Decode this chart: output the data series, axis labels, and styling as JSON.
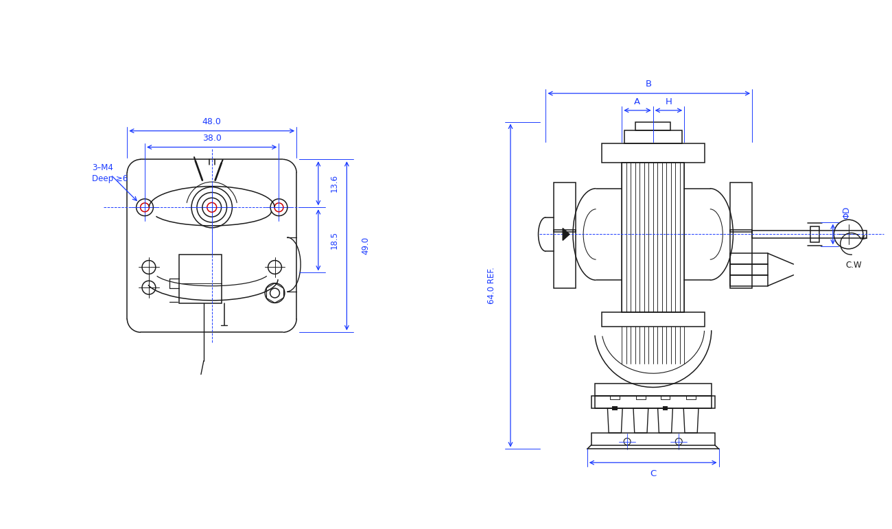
{
  "bg_color": "#ffffff",
  "line_color": "#1a1a1a",
  "dim_color": "#1a3aff",
  "red_color": "#cc0000",
  "fig_width": 13.0,
  "fig_height": 7.71,
  "dpi": 100,
  "annotations": {
    "dim_48": "48.0",
    "dim_38": "38.0",
    "dim_13_6": "13.6",
    "dim_18_5": "18.5",
    "dim_49": "49.0",
    "dim_64": "64.0 REF.",
    "label_A": "A",
    "label_B": "B",
    "label_H": "H",
    "label_C": "C",
    "label_phiD": "ΦD",
    "label_CW": "C.W",
    "label_3M4": "3–M4",
    "label_deep": "Deep ≥6"
  }
}
